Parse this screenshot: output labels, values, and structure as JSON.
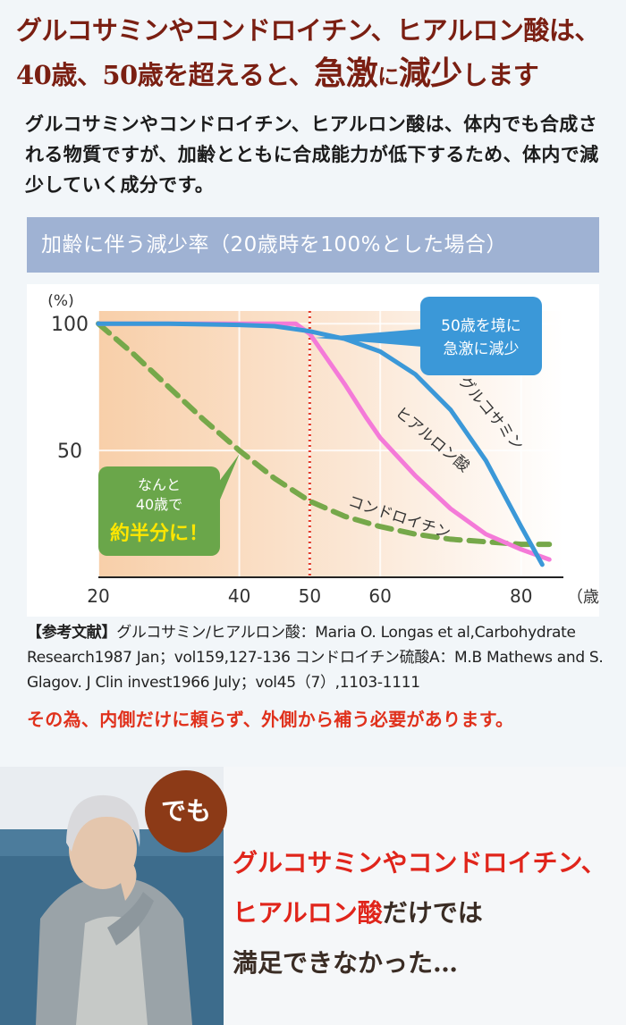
{
  "headline": {
    "line1": "グルコサミンやコンドロイチン、ヒアルロン酸は、",
    "line2_a": "40歳、50歳を超えると、",
    "line2_b": "急激",
    "line2_c": "に",
    "line2_d": "減少",
    "line2_e": "します"
  },
  "intro": "グルコサミンやコンドロイチン、ヒアルロン酸は、体内でも合成される物質ですが、加齢とともに合成能力が低下するため、体内で減少していく成分です。",
  "chart_title": "加齢に伴う減少率（20歳時を100%とした場合）",
  "chart_data": {
    "type": "line",
    "ylabel": "(%)",
    "xlabel_unit": "（歳）",
    "xticks": [
      20,
      40,
      50,
      60,
      80
    ],
    "yticks": [
      50,
      100
    ],
    "xlim": [
      20,
      86
    ],
    "ylim": [
      0,
      105
    ],
    "highlight_x": 50,
    "series": [
      {
        "name": "グルコサミン",
        "color": "#3b98d8",
        "style": "solid",
        "x": [
          20,
          30,
          40,
          45,
          50,
          55,
          60,
          65,
          70,
          75,
          80,
          83
        ],
        "y": [
          100,
          100,
          99.5,
          99,
          97,
          94,
          89,
          80,
          66,
          46,
          20,
          5
        ]
      },
      {
        "name": "ヒアルロン酸",
        "color": "#f47ad8",
        "style": "solid",
        "x": [
          20,
          30,
          40,
          45,
          48,
          50,
          52,
          55,
          58,
          60,
          65,
          70,
          75,
          80,
          84
        ],
        "y": [
          100,
          100,
          100,
          100,
          100,
          96,
          88,
          76,
          63,
          55,
          40,
          27,
          17,
          11,
          7
        ]
      },
      {
        "name": "コンドロイチン",
        "color": "#76a84a",
        "style": "dashed",
        "x": [
          20,
          25,
          30,
          35,
          40,
          45,
          50,
          55,
          60,
          65,
          70,
          75,
          80,
          84
        ],
        "y": [
          100,
          88,
          75,
          62,
          50,
          39,
          30,
          24,
          20,
          17,
          15,
          14,
          13,
          13
        ]
      }
    ],
    "callouts": {
      "blue_line1": "50歳を境に",
      "blue_line2": "急激に減少",
      "green_line1": "なんと",
      "green_line2": "40歳で",
      "green_line3": "約半分に！"
    }
  },
  "refs": {
    "label": "【参考文献】",
    "text": "グルコサミン/ヒアルロン酸：Maria O. Longas et al,Carbohydrate Research1987 Jan；vol159,127-136 コンドロイチン硫酸A：M.B Mathews and S. Glagov. J Clin invest1966 July；vol45（7）,1103-1111"
  },
  "warning": "その為、内側だけに頼らず、外側から補う必要があります。",
  "demo": "でも",
  "quote": {
    "red1": "グルコサミンやコンドロイチン、",
    "red2": "ヒアルロン酸",
    "dark2": "だけでは",
    "dark3": "満足できなかった…"
  }
}
